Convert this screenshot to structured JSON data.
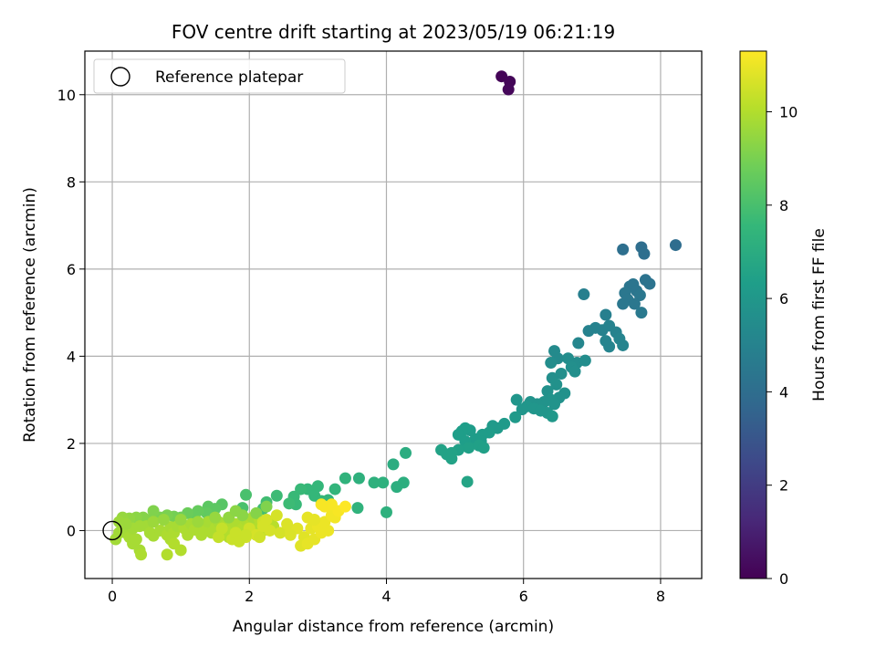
{
  "chart_data": {
    "type": "scatter",
    "title": "FOV centre drift starting at 2023/05/19 06:21:19",
    "xlabel": "Angular distance from reference (arcmin)",
    "ylabel": "Rotation from reference (arcmin)",
    "xlim": [
      -0.4,
      8.6
    ],
    "ylim": [
      -1.1,
      11.0
    ],
    "xticks": [
      0,
      2,
      4,
      6,
      8
    ],
    "yticks": [
      0,
      2,
      4,
      6,
      8,
      10
    ],
    "grid": true,
    "legend": {
      "position": "top-left",
      "entries": [
        "Reference platepar"
      ]
    },
    "reference_point": {
      "x": 0.0,
      "y": 0.0
    },
    "colorbar": {
      "label": "Hours from first FF file",
      "range": [
        0,
        11.3
      ],
      "ticks": [
        0,
        2,
        4,
        6,
        8,
        10
      ],
      "colormap": "viridis"
    },
    "series": [
      {
        "points": [
          [
            5.68,
            10.42,
            0.1
          ],
          [
            5.8,
            10.3,
            0.15
          ],
          [
            5.78,
            10.12,
            0.2
          ],
          [
            8.22,
            6.55,
            4.0
          ],
          [
            7.45,
            6.45,
            4.1
          ],
          [
            7.72,
            6.5,
            4.05
          ],
          [
            7.76,
            6.35,
            4.1
          ],
          [
            7.78,
            5.75,
            4.3
          ],
          [
            7.84,
            5.66,
            4.3
          ],
          [
            7.55,
            5.6,
            4.4
          ],
          [
            7.6,
            5.65,
            4.4
          ],
          [
            7.65,
            5.5,
            4.4
          ],
          [
            7.48,
            5.45,
            4.5
          ],
          [
            7.52,
            5.3,
            4.5
          ],
          [
            7.7,
            5.4,
            4.5
          ],
          [
            7.62,
            5.2,
            4.5
          ],
          [
            7.45,
            5.2,
            4.5
          ],
          [
            7.72,
            5.0,
            4.6
          ],
          [
            6.88,
            5.42,
            4.9
          ],
          [
            7.2,
            4.95,
            4.9
          ],
          [
            7.25,
            4.7,
            5.0
          ],
          [
            7.15,
            4.6,
            5.0
          ],
          [
            7.05,
            4.65,
            5.0
          ],
          [
            6.95,
            4.58,
            5.0
          ],
          [
            7.35,
            4.55,
            5.0
          ],
          [
            7.4,
            4.4,
            5.1
          ],
          [
            7.2,
            4.35,
            5.1
          ],
          [
            7.45,
            4.25,
            5.1
          ],
          [
            7.25,
            4.22,
            5.1
          ],
          [
            6.8,
            4.3,
            5.2
          ],
          [
            6.45,
            4.12,
            5.4
          ],
          [
            6.5,
            3.95,
            5.4
          ],
          [
            6.65,
            3.95,
            5.5
          ],
          [
            6.4,
            3.85,
            5.5
          ],
          [
            6.78,
            3.85,
            5.5
          ],
          [
            6.9,
            3.9,
            5.5
          ],
          [
            6.7,
            3.75,
            5.6
          ],
          [
            6.75,
            3.65,
            5.6
          ],
          [
            6.55,
            3.6,
            5.6
          ],
          [
            6.42,
            3.5,
            5.6
          ],
          [
            6.48,
            3.35,
            5.7
          ],
          [
            6.6,
            3.15,
            5.7
          ],
          [
            6.52,
            3.05,
            5.7
          ],
          [
            6.35,
            3.2,
            5.7
          ],
          [
            6.4,
            3.0,
            5.8
          ],
          [
            6.3,
            2.95,
            5.8
          ],
          [
            6.2,
            2.9,
            5.8
          ],
          [
            6.1,
            2.95,
            5.8
          ],
          [
            6.05,
            2.85,
            5.9
          ],
          [
            5.9,
            3.0,
            5.9
          ],
          [
            5.98,
            2.78,
            5.9
          ],
          [
            6.15,
            2.8,
            5.9
          ],
          [
            6.25,
            2.75,
            5.9
          ],
          [
            6.35,
            2.7,
            5.9
          ],
          [
            6.45,
            2.9,
            5.8
          ],
          [
            6.42,
            2.62,
            6.0
          ],
          [
            5.88,
            2.6,
            6.1
          ],
          [
            5.72,
            2.45,
            6.1
          ],
          [
            5.62,
            2.35,
            6.1
          ],
          [
            5.55,
            2.4,
            6.1
          ],
          [
            5.5,
            2.25,
            6.2
          ],
          [
            5.4,
            2.2,
            6.2
          ],
          [
            5.38,
            2.05,
            6.2
          ],
          [
            5.3,
            2.1,
            6.2
          ],
          [
            5.22,
            2.3,
            6.2
          ],
          [
            5.15,
            2.35,
            6.3
          ],
          [
            5.1,
            2.28,
            6.3
          ],
          [
            5.05,
            2.2,
            6.3
          ],
          [
            5.15,
            2.05,
            6.3
          ],
          [
            5.2,
            1.9,
            6.4
          ],
          [
            5.35,
            1.95,
            6.4
          ],
          [
            5.42,
            1.9,
            6.4
          ],
          [
            5.05,
            1.85,
            6.4
          ],
          [
            4.95,
            1.78,
            6.5
          ],
          [
            4.88,
            1.75,
            6.5
          ],
          [
            4.8,
            1.85,
            6.5
          ],
          [
            4.95,
            1.65,
            6.5
          ],
          [
            5.18,
            1.12,
            6.6
          ],
          [
            4.28,
            1.78,
            7.0
          ],
          [
            4.1,
            1.52,
            7.0
          ],
          [
            4.25,
            1.1,
            7.1
          ],
          [
            4.15,
            1.0,
            7.1
          ],
          [
            3.95,
            1.1,
            7.2
          ],
          [
            3.82,
            1.1,
            7.2
          ],
          [
            3.6,
            1.2,
            7.2
          ],
          [
            3.4,
            1.2,
            7.3
          ],
          [
            3.58,
            0.52,
            7.3
          ],
          [
            4.0,
            0.42,
            7.2
          ],
          [
            3.25,
            0.95,
            7.4
          ],
          [
            3.15,
            0.7,
            7.4
          ],
          [
            3.0,
            1.02,
            7.5
          ],
          [
            2.85,
            0.95,
            7.5
          ],
          [
            2.95,
            0.8,
            7.5
          ],
          [
            2.75,
            0.95,
            7.6
          ],
          [
            2.65,
            0.78,
            7.6
          ],
          [
            2.68,
            0.6,
            7.6
          ],
          [
            2.58,
            0.62,
            7.7
          ],
          [
            2.4,
            0.8,
            7.7
          ],
          [
            2.25,
            0.65,
            7.8
          ],
          [
            2.2,
            0.5,
            7.8
          ],
          [
            1.95,
            0.82,
            8.0
          ],
          [
            1.9,
            0.52,
            8.0
          ],
          [
            3.05,
            0.68,
            7.5
          ],
          [
            1.6,
            0.6,
            8.3
          ],
          [
            1.5,
            0.5,
            8.4
          ],
          [
            1.4,
            0.55,
            8.4
          ],
          [
            1.38,
            0.4,
            8.5
          ],
          [
            1.25,
            0.45,
            8.6
          ],
          [
            1.2,
            0.35,
            8.6
          ],
          [
            1.1,
            0.4,
            8.7
          ],
          [
            1.0,
            0.3,
            8.8
          ],
          [
            0.9,
            0.32,
            8.9
          ],
          [
            0.8,
            0.35,
            9.0
          ],
          [
            0.7,
            0.3,
            9.0
          ],
          [
            0.6,
            0.45,
            9.1
          ],
          [
            0.55,
            0.25,
            9.1
          ],
          [
            0.45,
            0.3,
            9.2
          ],
          [
            0.35,
            0.3,
            9.3
          ],
          [
            0.25,
            0.28,
            9.4
          ],
          [
            0.15,
            0.3,
            9.5
          ],
          [
            0.1,
            0.2,
            9.6
          ],
          [
            0.1,
            -0.05,
            9.7
          ],
          [
            0.05,
            -0.2,
            9.7
          ],
          [
            0.2,
            -0.05,
            9.7
          ],
          [
            0.25,
            -0.15,
            9.8
          ],
          [
            0.3,
            -0.3,
            9.8
          ],
          [
            0.35,
            -0.2,
            9.8
          ],
          [
            0.4,
            -0.45,
            9.8
          ],
          [
            0.42,
            -0.55,
            9.9
          ],
          [
            0.5,
            0.1,
            9.7
          ],
          [
            0.55,
            -0.05,
            9.8
          ],
          [
            0.6,
            -0.12,
            9.8
          ],
          [
            0.7,
            0.0,
            9.8
          ],
          [
            0.8,
            -0.1,
            9.9
          ],
          [
            0.85,
            0.08,
            9.8
          ],
          [
            0.9,
            -0.05,
            9.9
          ],
          [
            0.95,
            0.1,
            9.8
          ],
          [
            1.05,
            0.05,
            9.9
          ],
          [
            1.1,
            -0.1,
            9.9
          ],
          [
            1.15,
            0.15,
            9.8
          ],
          [
            1.2,
            0.02,
            9.9
          ],
          [
            1.3,
            -0.1,
            9.9
          ],
          [
            1.35,
            0.1,
            9.9
          ],
          [
            1.4,
            0.2,
            9.8
          ],
          [
            1.45,
            -0.05,
            9.9
          ],
          [
            1.5,
            0.05,
            9.9
          ],
          [
            1.55,
            0.2,
            9.8
          ],
          [
            1.6,
            -0.1,
            10.0
          ],
          [
            1.65,
            0.1,
            9.9
          ],
          [
            1.7,
            -0.15,
            10.0
          ],
          [
            1.75,
            0.0,
            10.0
          ],
          [
            1.8,
            0.15,
            9.9
          ],
          [
            1.85,
            -0.1,
            10.0
          ],
          [
            1.9,
            0.05,
            10.0
          ],
          [
            1.95,
            0.25,
            9.9
          ],
          [
            2.0,
            0.1,
            10.0
          ],
          [
            2.05,
            0.3,
            9.8
          ],
          [
            2.1,
            0.05,
            10.0
          ],
          [
            2.15,
            0.25,
            10.0
          ],
          [
            2.2,
            0.0,
            10.1
          ],
          [
            2.3,
            0.15,
            10.0
          ],
          [
            2.35,
            0.1,
            10.1
          ],
          [
            0.85,
            -0.2,
            9.9
          ],
          [
            0.8,
            -0.55,
            10.0
          ],
          [
            1.0,
            -0.45,
            10.0
          ],
          [
            0.9,
            -0.3,
            10.0
          ],
          [
            0.3,
            0.05,
            9.7
          ],
          [
            0.2,
            0.15,
            9.6
          ],
          [
            0.4,
            0.1,
            9.7
          ],
          [
            0.6,
            0.2,
            9.6
          ],
          [
            0.75,
            0.25,
            9.5
          ],
          [
            1.0,
            0.25,
            9.5
          ],
          [
            1.25,
            0.2,
            9.6
          ],
          [
            1.5,
            0.3,
            9.5
          ],
          [
            1.7,
            0.3,
            9.4
          ],
          [
            1.9,
            0.35,
            9.3
          ],
          [
            2.1,
            0.4,
            9.2
          ],
          [
            2.25,
            0.55,
            9.1
          ],
          [
            1.8,
            0.45,
            9.3
          ],
          [
            1.6,
            0.05,
            10.3
          ],
          [
            1.55,
            -0.15,
            10.3
          ],
          [
            1.75,
            -0.2,
            10.4
          ],
          [
            1.8,
            -0.05,
            10.4
          ],
          [
            1.95,
            -0.15,
            10.5
          ],
          [
            2.0,
            0.05,
            10.5
          ],
          [
            2.1,
            -0.1,
            10.6
          ],
          [
            2.2,
            0.2,
            10.5
          ],
          [
            2.3,
            0.0,
            10.6
          ],
          [
            2.45,
            -0.05,
            10.6
          ],
          [
            2.6,
            0.0,
            10.7
          ],
          [
            2.7,
            0.05,
            10.8
          ],
          [
            2.75,
            -0.35,
            10.8
          ],
          [
            2.8,
            -0.15,
            10.8
          ],
          [
            2.85,
            -0.3,
            10.9
          ],
          [
            2.9,
            0.05,
            10.9
          ],
          [
            2.95,
            -0.2,
            10.9
          ],
          [
            3.0,
            0.1,
            11.0
          ],
          [
            3.05,
            -0.05,
            11.0
          ],
          [
            3.1,
            0.2,
            11.0
          ],
          [
            3.15,
            0.0,
            11.0
          ],
          [
            3.2,
            0.35,
            11.1
          ],
          [
            3.25,
            0.3,
            11.1
          ],
          [
            3.1,
            0.55,
            11.2
          ],
          [
            3.05,
            0.6,
            11.2
          ],
          [
            3.2,
            0.6,
            11.2
          ],
          [
            3.3,
            0.45,
            11.2
          ],
          [
            3.4,
            0.55,
            11.3
          ],
          [
            2.85,
            0.3,
            10.9
          ],
          [
            2.95,
            0.25,
            10.9
          ],
          [
            1.85,
            -0.25,
            10.4
          ],
          [
            1.95,
            -0.1,
            10.4
          ],
          [
            2.15,
            -0.15,
            10.5
          ],
          [
            2.2,
            0.1,
            10.6
          ],
          [
            2.25,
            0.25,
            10.6
          ],
          [
            2.4,
            0.35,
            10.6
          ],
          [
            2.6,
            -0.1,
            10.7
          ],
          [
            2.55,
            0.15,
            10.7
          ]
        ]
      }
    ]
  }
}
